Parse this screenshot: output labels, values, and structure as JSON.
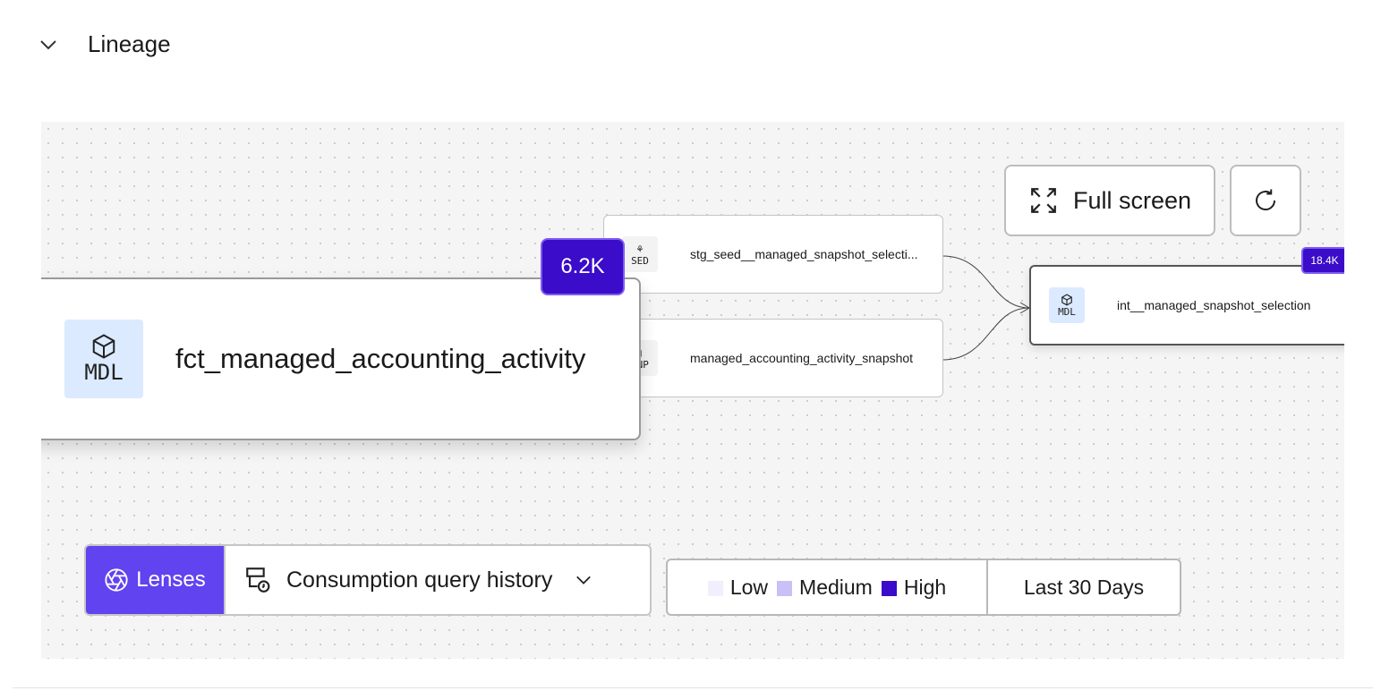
{
  "section": {
    "title": "Lineage"
  },
  "graph": {
    "main_node": {
      "type": "MDL",
      "name": "fct_managed_accounting_activity",
      "count": "6.2K"
    },
    "upstream": [
      {
        "type": "SED",
        "name": "stg_seed__managed_snapshot_selecti..."
      },
      {
        "type": "SNP",
        "name": "managed_accounting_activity_snapshot"
      }
    ],
    "downstream": {
      "type": "MDL",
      "name": "int__managed_snapshot_selection",
      "count": "18.4K"
    }
  },
  "toolbar": {
    "fullscreen_label": "Full screen"
  },
  "lenses": {
    "label": "Lenses",
    "selected": "Consumption query history"
  },
  "legend": {
    "items": [
      {
        "label": "Low",
        "color": "#f1effd"
      },
      {
        "label": "Medium",
        "color": "#cbbff7"
      },
      {
        "label": "High",
        "color": "#3b0cc9"
      }
    ],
    "range": "Last 30 Days"
  }
}
